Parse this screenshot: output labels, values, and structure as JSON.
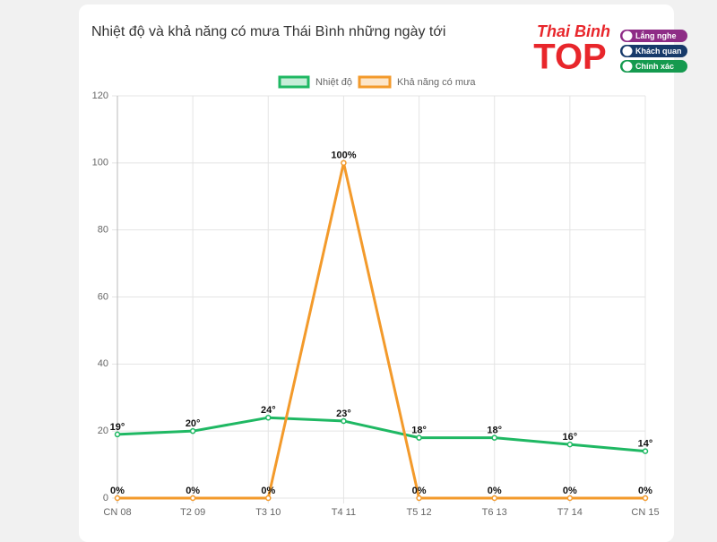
{
  "chart_data": {
    "type": "line",
    "title": "Nhiệt độ và khả năng có mưa Thái Bình những ngày tới",
    "categories": [
      "CN 08",
      "T2 09",
      "T3 10",
      "T4 11",
      "T5 12",
      "T6 13",
      "T7 14",
      "CN 15"
    ],
    "series": [
      {
        "name": "Nhiệt độ",
        "color": "#1fb863",
        "values": [
          19,
          20,
          24,
          23,
          18,
          18,
          16,
          14
        ],
        "value_labels": [
          "19°",
          "20°",
          "24°",
          "23°",
          "18°",
          "18°",
          "16°",
          "14°"
        ]
      },
      {
        "name": "Khả năng có mưa",
        "color": "#f39a2b",
        "values": [
          0,
          0,
          0,
          100,
          0,
          0,
          0,
          0
        ],
        "value_labels": [
          "0%",
          "0%",
          "0%",
          "100%",
          "0%",
          "0%",
          "0%",
          "0%"
        ]
      }
    ],
    "ylim": [
      0,
      120
    ],
    "yticks": [
      0,
      20,
      40,
      60,
      80,
      100,
      120
    ],
    "grid": true,
    "legend": "top"
  },
  "logo": {
    "brand": "Thai Binh",
    "name": "TOP",
    "badges": [
      "Lắng nghe",
      "Khách quan",
      "Chính xác"
    ]
  }
}
